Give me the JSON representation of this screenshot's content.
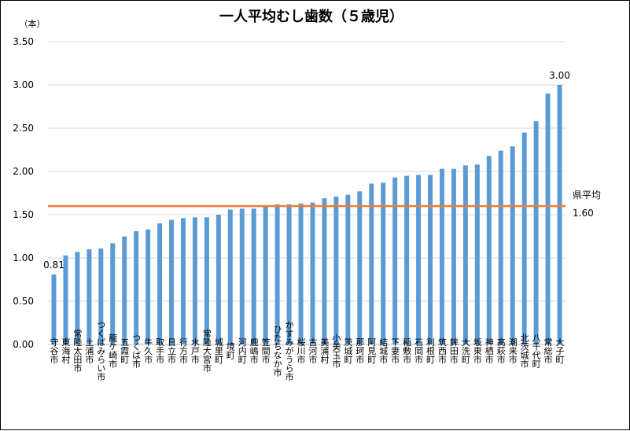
{
  "chart_data": {
    "type": "bar",
    "title": "一人平均むし歯数（５歳児）",
    "unit_label": "（本）",
    "ylim": [
      0,
      3.5
    ],
    "yticks": [
      "0.00",
      "0.50",
      "1.00",
      "1.50",
      "2.00",
      "2.50",
      "3.00",
      "3.50"
    ],
    "grid": true,
    "bar_color": "#5B9BD5",
    "categories": [
      "守谷市",
      "東海村",
      "常陸太田市",
      "土浦市",
      "つくばみらい市",
      "龍ケ崎市",
      "五霞町",
      "つくば市",
      "牛久市",
      "取手市",
      "日立市",
      "行方市",
      "水戸市",
      "常陸大宮市",
      "城里町",
      "境町",
      "河内町",
      "鹿嶋市",
      "笠間市",
      "ひたちなか市",
      "かすみがうら市",
      "桜川市",
      "古河市",
      "美浦村",
      "小美玉市",
      "茨城町",
      "那珂市",
      "阿見町",
      "結城市",
      "下妻市",
      "稲敷市",
      "石岡市",
      "利根町",
      "筑西市",
      "鉾田市",
      "大洗町",
      "坂東市",
      "神栖市",
      "高萩市",
      "潮来市",
      "北茨城市",
      "八千代町",
      "常総市",
      "大子町"
    ],
    "values": [
      0.81,
      1.03,
      1.07,
      1.1,
      1.11,
      1.17,
      1.25,
      1.31,
      1.33,
      1.4,
      1.44,
      1.46,
      1.47,
      1.47,
      1.5,
      1.56,
      1.57,
      1.57,
      1.61,
      1.62,
      1.62,
      1.63,
      1.64,
      1.69,
      1.71,
      1.73,
      1.77,
      1.86,
      1.87,
      1.93,
      1.95,
      1.96,
      1.96,
      2.03,
      2.03,
      2.07,
      2.08,
      2.18,
      2.24,
      2.29,
      2.45,
      2.58,
      2.9,
      3.0
    ],
    "reference_line": {
      "label": "県平均",
      "value": 1.6,
      "value_label": "1.60",
      "color": "#ED7D31"
    },
    "data_labels": [
      {
        "category": "守谷市",
        "text": "0.81"
      },
      {
        "category": "大子町",
        "text": "3.00"
      }
    ]
  }
}
